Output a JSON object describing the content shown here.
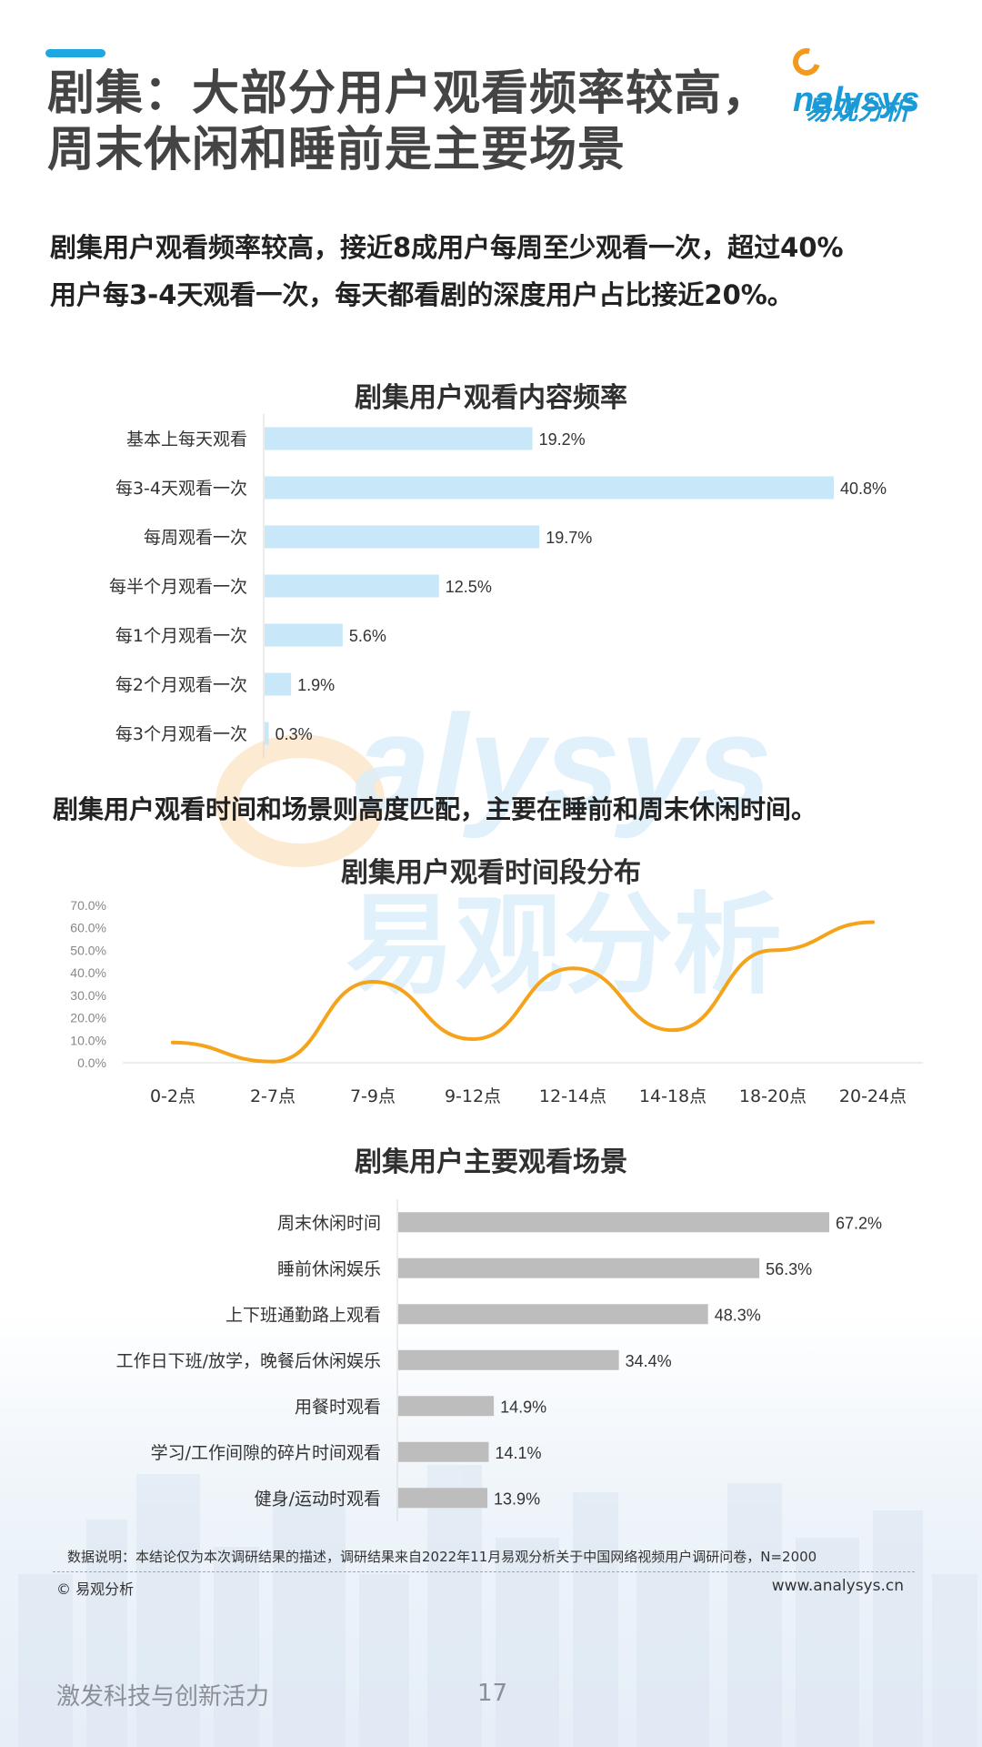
{
  "header": {
    "title_line1": "剧集：大部分用户观看频率较高，",
    "title_line2": "周末休闲和睡前是主要场景"
  },
  "logo": {
    "en_rest": "nalysys",
    "cn": "易观分析"
  },
  "intro": {
    "line1": "剧集用户观看频率较高，接近8成用户每周至少观看一次，超过40%",
    "line2": "用户每3-4天观看一次，每天都看剧的深度用户占比接近20%。"
  },
  "section_note": "剧集用户观看时间和场景则高度匹配，主要在睡前和周末休闲时间。",
  "watermark": {
    "en": "alysys",
    "cn": "易观分析"
  },
  "colors": {
    "accent": "#1ea7e1",
    "freq_bar": "#c8e8fa",
    "line": "#f5a31a",
    "scene_bar": "#bdbdbd",
    "logo_blue": "#1a9ad6",
    "logo_orange": "#f39a1e"
  },
  "chart_data": [
    {
      "type": "bar",
      "orientation": "horizontal",
      "title": "剧集用户观看内容频率",
      "categories": [
        "基本上每天观看",
        "每3-4天观看一次",
        "每周观看一次",
        "每半个月观看一次",
        "每1个月观看一次",
        "每2个月观看一次",
        "每3个月观看一次"
      ],
      "values": [
        19.2,
        40.8,
        19.7,
        12.5,
        5.6,
        1.9,
        0.3
      ],
      "labels": [
        "19.2%",
        "40.8%",
        "19.7%",
        "12.5%",
        "5.6%",
        "1.9%",
        "0.3%"
      ],
      "xlim": [
        0,
        40.8
      ],
      "grid": false
    },
    {
      "type": "line",
      "title": "剧集用户观看时间段分布",
      "categories": [
        "0-2点",
        "2-7点",
        "7-9点",
        "9-12点",
        "12-14点",
        "14-18点",
        "18-20点",
        "20-24点"
      ],
      "values": [
        9.0,
        0.5,
        36.0,
        10.5,
        42.0,
        14.5,
        50.0,
        62.5
      ],
      "ylim": [
        0,
        70
      ],
      "yticks": [
        "0.0%",
        "10.0%",
        "20.0%",
        "30.0%",
        "40.0%",
        "50.0%",
        "60.0%",
        "70.0%"
      ],
      "smooth": true,
      "grid": false
    },
    {
      "type": "bar",
      "orientation": "horizontal",
      "title": "剧集用户主要观看场景",
      "categories": [
        "周末休闲时间",
        "睡前休闲娱乐",
        "上下班通勤路上观看",
        "工作日下班/放学，晚餐后休闲娱乐",
        "用餐时观看",
        "学习/工作间隙的碎片时间观看",
        "健身/运动时观看"
      ],
      "values": [
        67.2,
        56.3,
        48.3,
        34.4,
        14.9,
        14.1,
        13.9
      ],
      "labels": [
        "67.2%",
        "56.3%",
        "48.3%",
        "34.4%",
        "14.9%",
        "14.1%",
        "13.9%"
      ],
      "xlim": [
        0,
        67.2
      ],
      "grid": false
    }
  ],
  "footer": {
    "note": "数据说明：本结论仅为本次调研结果的描述，调研结果来自2022年11月易观分析关于中国网络视频用户调研问卷，N=2000",
    "copyright": "© 易观分析",
    "website": "www.analysys.cn",
    "slogan": "激发科技与创新活力",
    "page": "17"
  }
}
